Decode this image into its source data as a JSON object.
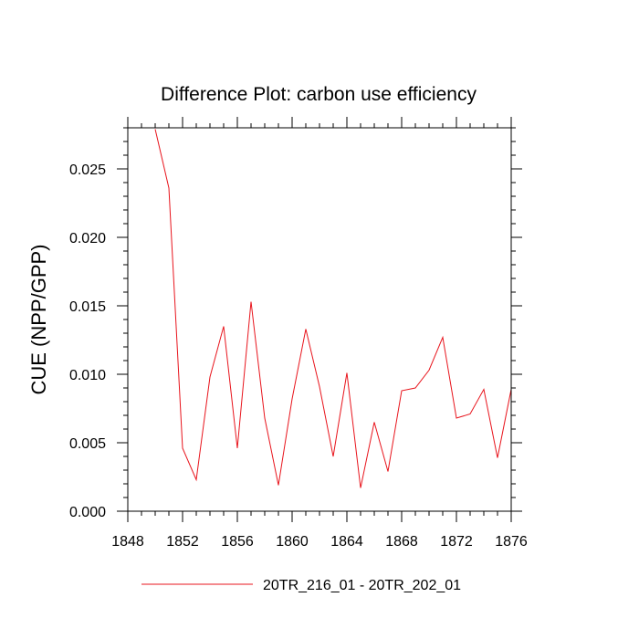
{
  "chart_data": {
    "type": "line",
    "title": "Difference Plot: carbon use efficiency",
    "xlabel": "",
    "ylabel": "CUE  (NPP/GPP)",
    "xlim": [
      1848,
      1876
    ],
    "ylim": [
      0.0,
      0.028
    ],
    "x_ticks": [
      1848,
      1852,
      1856,
      1860,
      1864,
      1868,
      1872,
      1876
    ],
    "x_tick_labels": [
      "1848",
      "1852",
      "1856",
      "1860",
      "1864",
      "1868",
      "1872",
      "1876"
    ],
    "y_ticks": [
      0.0,
      0.005,
      0.01,
      0.015,
      0.02,
      0.025
    ],
    "y_tick_labels": [
      "0.000",
      "0.005",
      "0.010",
      "0.015",
      "0.020",
      "0.025"
    ],
    "legend_position": "bottom",
    "series": [
      {
        "name": "20TR_216_01 - 20TR_202_01",
        "color": "#e8141c",
        "x": [
          1850,
          1851,
          1852,
          1853,
          1854,
          1855,
          1856,
          1857,
          1858,
          1859,
          1860,
          1861,
          1862,
          1863,
          1864,
          1865,
          1866,
          1867,
          1868,
          1869,
          1870,
          1871,
          1872,
          1873,
          1874,
          1875,
          1876
        ],
        "y": [
          0.0279,
          0.0236,
          0.0046,
          0.0023,
          0.0098,
          0.0135,
          0.0046,
          0.0153,
          0.0068,
          0.0019,
          0.0082,
          0.0133,
          0.0091,
          0.004,
          0.0101,
          0.0017,
          0.0065,
          0.0029,
          0.0088,
          0.009,
          0.0103,
          0.0127,
          0.0068,
          0.0071,
          0.0089,
          0.0039,
          0.0089
        ]
      }
    ]
  }
}
